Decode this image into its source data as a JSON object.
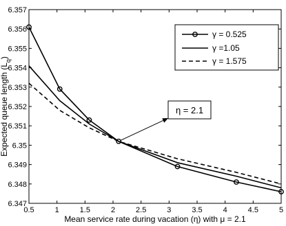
{
  "chart_data": {
    "type": "line",
    "title": "",
    "xlabel": "Mean service rate during vacation (η) with μ = 2.1",
    "ylabel": "Expected queue length (L",
    "ylabel_sub": "q",
    "ylabel_close": ")",
    "xlim": [
      0.5,
      5
    ],
    "ylim": [
      6.347,
      6.357
    ],
    "x_ticks": [
      0.5,
      1,
      1.5,
      2,
      2.5,
      3,
      3.5,
      4,
      4.5,
      5
    ],
    "x_tick_labels": [
      "0.5",
      "1",
      "1.5",
      "2",
      "2.5",
      "3",
      "3.5",
      "4",
      "4.5",
      "5"
    ],
    "y_ticks": [
      6.347,
      6.348,
      6.349,
      6.35,
      6.351,
      6.352,
      6.353,
      6.354,
      6.355,
      6.356,
      6.357
    ],
    "y_tick_labels": [
      "6.347",
      "6.348",
      "6.349",
      "6.35",
      "6.351",
      "6.352",
      "6.353",
      "6.354",
      "6.355",
      "6.356",
      "6.357"
    ],
    "grid": false,
    "legend_position": "top-right",
    "series": [
      {
        "name": "γ = 0.525",
        "style": "solid-circle",
        "x": [
          0.5,
          1.05,
          1.575,
          2.1,
          3.15,
          4.2,
          5
        ],
        "y": [
          6.3561,
          6.3529,
          6.3513,
          6.3502,
          6.3489,
          6.3481,
          6.3476
        ]
      },
      {
        "name": "γ =1.05",
        "style": "solid",
        "x": [
          0.5,
          1.05,
          1.575,
          2.1,
          3.15,
          4.2,
          5
        ],
        "y": [
          6.3541,
          6.3523,
          6.3511,
          6.3502,
          6.3491,
          6.3484,
          6.3478
        ]
      },
      {
        "name": "γ = 1.575",
        "style": "dashed",
        "x": [
          0.5,
          1.05,
          1.575,
          2.1,
          3.15,
          4.2,
          5
        ],
        "y": [
          6.3532,
          6.3518,
          6.3509,
          6.3502,
          6.3493,
          6.3486,
          6.348
        ]
      }
    ],
    "annotations": [
      {
        "text": "η = 2.1",
        "target_x": 2.1,
        "target_y": 6.3502
      }
    ]
  }
}
